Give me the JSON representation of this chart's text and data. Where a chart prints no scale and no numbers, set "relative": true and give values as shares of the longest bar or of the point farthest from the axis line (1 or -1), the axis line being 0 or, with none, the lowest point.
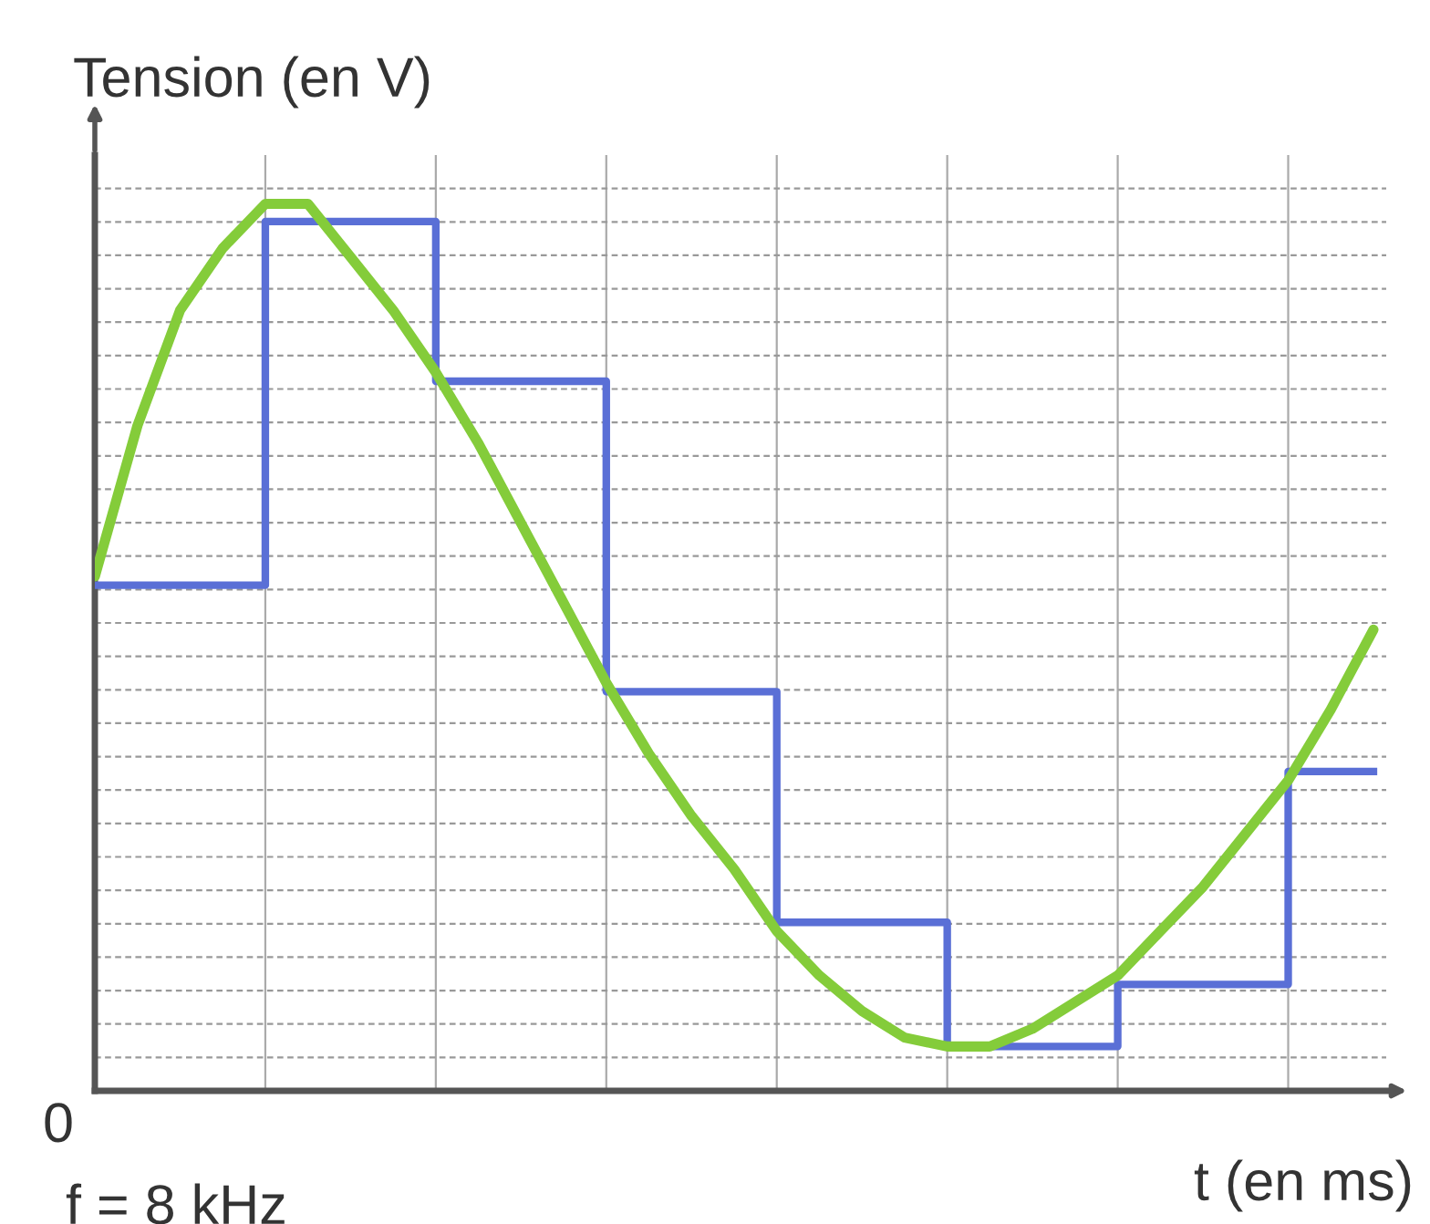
{
  "chart_data": {
    "type": "line",
    "relative": true,
    "ylabel": "Tension (en V)",
    "xlabel": "t (en ms)",
    "annotations": [
      "0",
      "f = 8 kHz"
    ],
    "grid": true,
    "marker": "none",
    "categories": [
      null,
      null,
      null,
      null,
      null,
      null,
      null,
      null,
      null,
      null,
      null,
      null,
      null,
      null,
      null,
      null,
      null,
      null,
      null,
      null,
      null,
      null,
      null,
      null,
      null,
      null,
      null,
      null,
      null,
      null,
      null
    ],
    "series": [
      {
        "type": "step",
        "color": "#5a6fd6",
        "values": [
          0.57,
          0.57,
          0.57,
          0.57,
          0.98,
          0.98,
          0.98,
          0.98,
          0.8,
          0.8,
          0.8,
          0.8,
          0.45,
          0.45,
          0.45,
          0.45,
          0.19,
          0.19,
          0.19,
          0.19,
          0.05,
          0.05,
          0.05,
          0.05,
          0.12,
          0.12,
          0.12,
          0.12,
          0.36,
          0.36,
          0.36
        ]
      },
      {
        "color": "#84cc3a",
        "values": [
          0.58,
          0.75,
          0.88,
          0.95,
          1.0,
          1.0,
          0.94,
          0.88,
          0.81,
          0.73,
          0.64,
          0.55,
          0.46,
          0.38,
          0.31,
          0.25,
          0.18,
          0.13,
          0.09,
          0.06,
          0.05,
          0.05,
          0.07,
          0.1,
          0.13,
          0.18,
          0.23,
          0.29,
          0.35,
          0.43,
          0.52
        ]
      }
    ]
  }
}
